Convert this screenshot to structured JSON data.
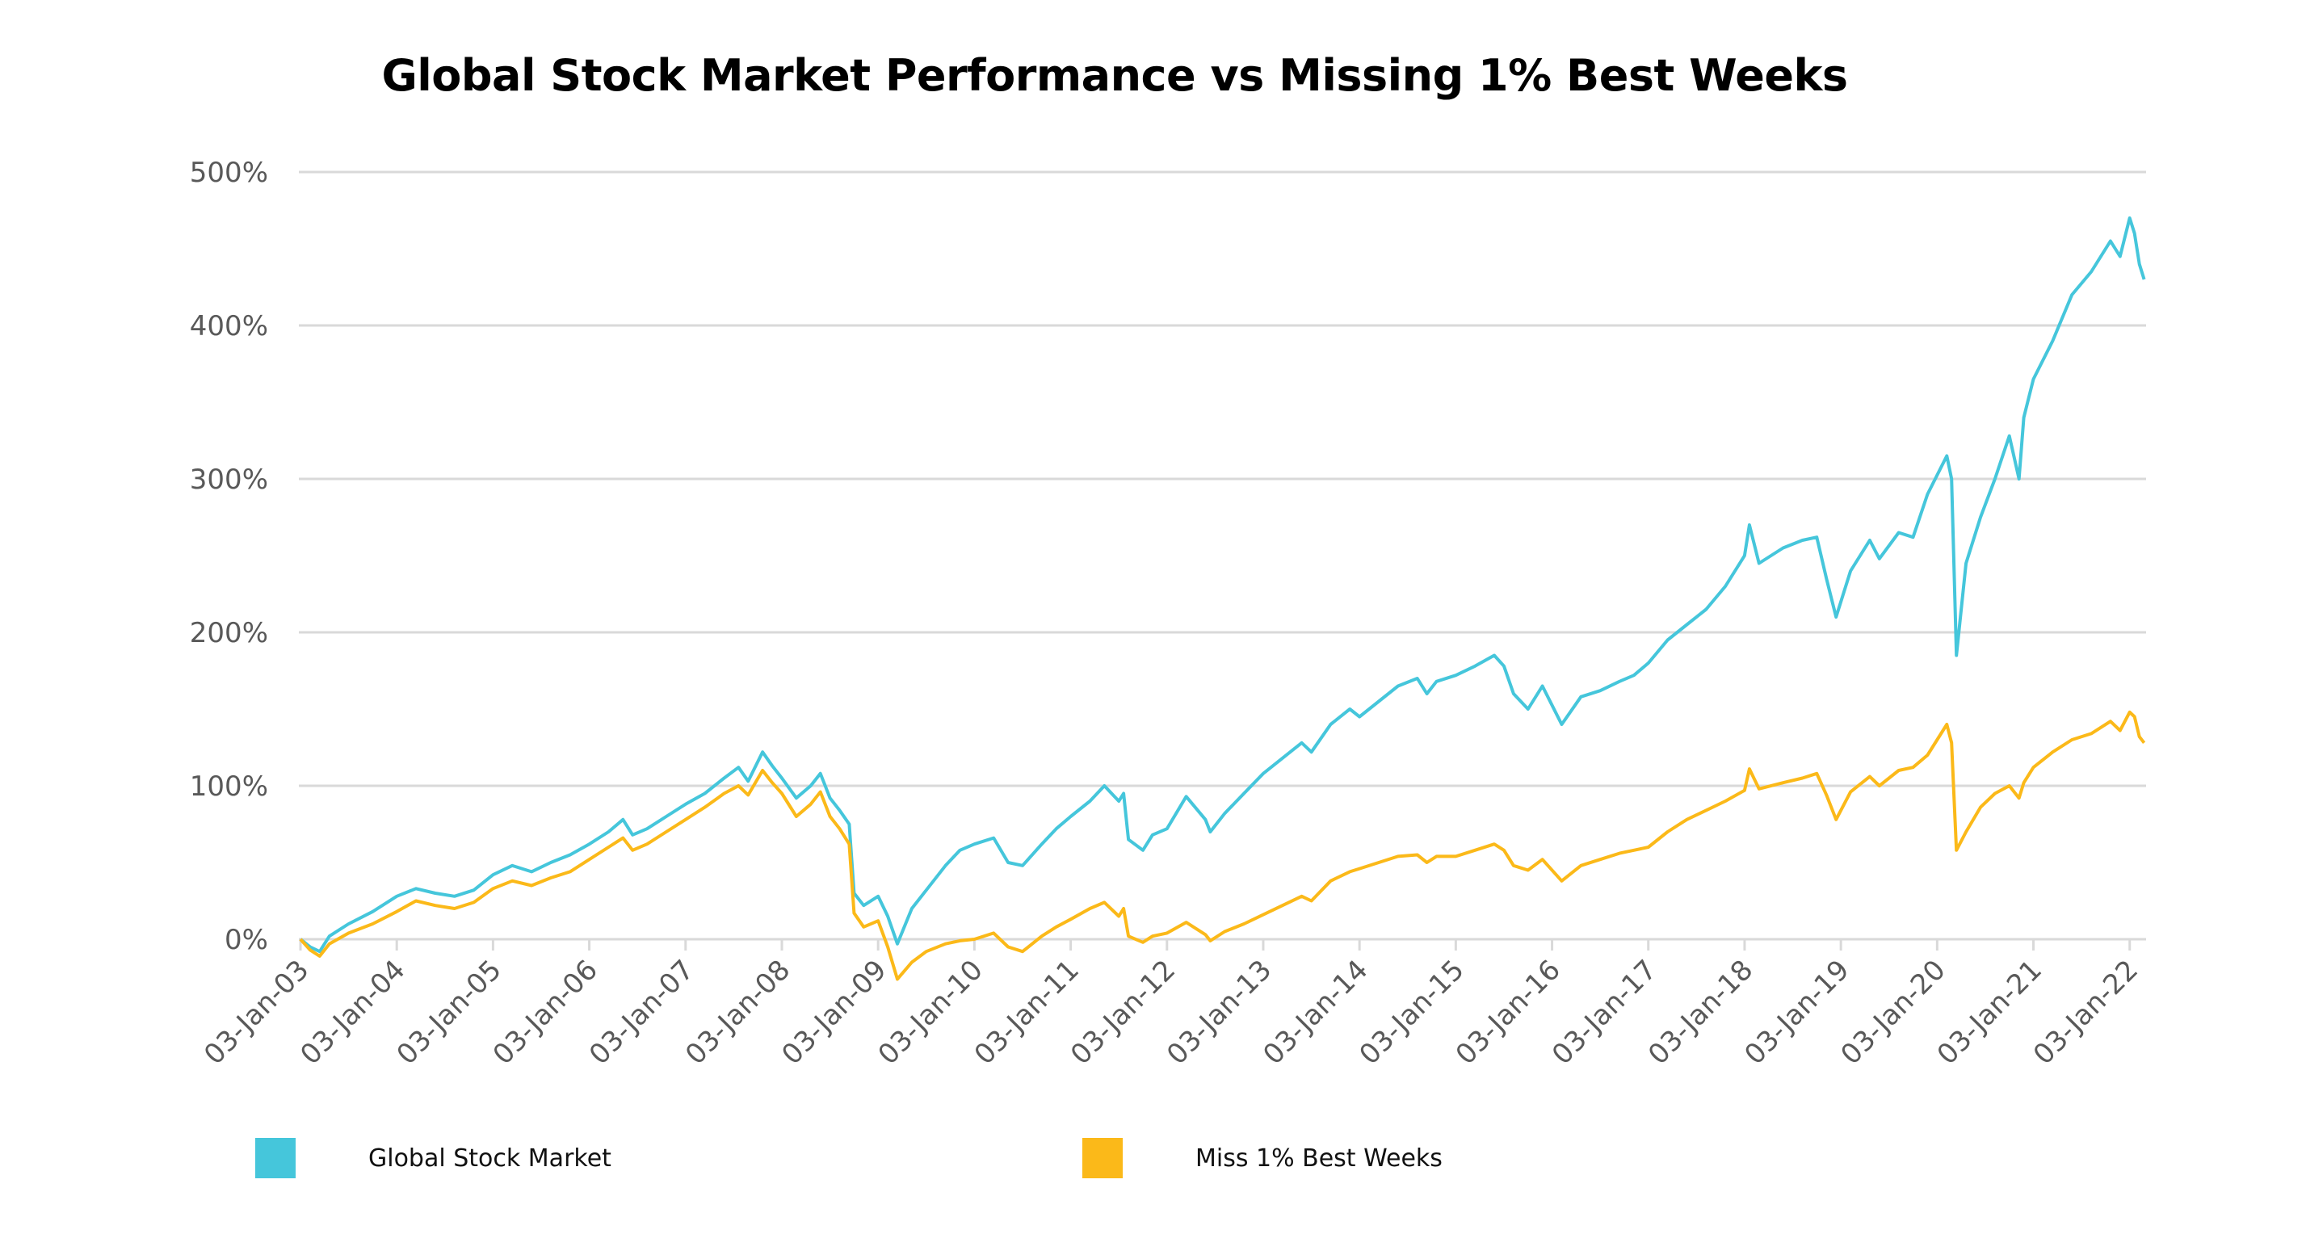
{
  "chart_data": {
    "type": "line",
    "title": "Global Stock Market Performance vs Missing 1% Best Weeks",
    "xlabel": "",
    "ylabel": "",
    "ylim": [
      0,
      500
    ],
    "yticks": [
      "0%",
      "100%",
      "200%",
      "300%",
      "400%",
      "500%"
    ],
    "ytick_values": [
      0,
      100,
      200,
      300,
      400,
      500
    ],
    "xlim": [
      2003.0,
      2022.17
    ],
    "xticks": [
      "03-Jan-03",
      "03-Jan-04",
      "03-Jan-05",
      "03-Jan-06",
      "03-Jan-07",
      "03-Jan-08",
      "03-Jan-09",
      "03-Jan-10",
      "03-Jan-11",
      "03-Jan-12",
      "03-Jan-13",
      "03-Jan-14",
      "03-Jan-15",
      "03-Jan-16",
      "03-Jan-17",
      "03-Jan-18",
      "03-Jan-19",
      "03-Jan-20",
      "03-Jan-21",
      "03-Jan-22"
    ],
    "xtick_values": [
      2003,
      2004,
      2005,
      2006,
      2007,
      2008,
      2009,
      2010,
      2011,
      2012,
      2013,
      2014,
      2015,
      2016,
      2017,
      2018,
      2019,
      2020,
      2021,
      2022
    ],
    "grid": true,
    "legend_position": "bottom",
    "series": [
      {
        "name": "Global Stock Market",
        "color": "#45C6DB",
        "x": [
          2003.0,
          2003.1,
          2003.2,
          2003.3,
          2003.5,
          2003.75,
          2004.0,
          2004.2,
          2004.4,
          2004.6,
          2004.8,
          2005.0,
          2005.2,
          2005.4,
          2005.6,
          2005.8,
          2006.0,
          2006.2,
          2006.35,
          2006.45,
          2006.6,
          2006.8,
          2007.0,
          2007.2,
          2007.4,
          2007.55,
          2007.65,
          2007.8,
          2007.9,
          2008.0,
          2008.15,
          2008.3,
          2008.4,
          2008.5,
          2008.6,
          2008.7,
          2008.75,
          2008.85,
          2009.0,
          2009.1,
          2009.2,
          2009.35,
          2009.5,
          2009.7,
          2009.85,
          2010.0,
          2010.2,
          2010.35,
          2010.5,
          2010.7,
          2010.85,
          2011.0,
          2011.2,
          2011.35,
          2011.5,
          2011.55,
          2011.6,
          2011.75,
          2011.85,
          2012.0,
          2012.2,
          2012.4,
          2012.45,
          2012.6,
          2012.8,
          2013.0,
          2013.2,
          2013.4,
          2013.5,
          2013.7,
          2013.9,
          2014.0,
          2014.2,
          2014.4,
          2014.6,
          2014.7,
          2014.8,
          2015.0,
          2015.2,
          2015.4,
          2015.5,
          2015.6,
          2015.75,
          2015.9,
          2016.1,
          2016.3,
          2016.5,
          2016.7,
          2016.85,
          2017.0,
          2017.2,
          2017.4,
          2017.6,
          2017.8,
          2018.0,
          2018.05,
          2018.15,
          2018.4,
          2018.6,
          2018.75,
          2018.85,
          2018.95,
          2019.1,
          2019.3,
          2019.4,
          2019.6,
          2019.75,
          2019.9,
          2020.1,
          2020.15,
          2020.2,
          2020.3,
          2020.45,
          2020.6,
          2020.75,
          2020.85,
          2020.9,
          2021.0,
          2021.2,
          2021.4,
          2021.6,
          2021.8,
          2021.9,
          2022.0,
          2022.05,
          2022.1,
          2022.15
        ],
        "values": [
          0,
          -5,
          -8,
          2,
          10,
          18,
          28,
          33,
          30,
          28,
          32,
          42,
          48,
          44,
          50,
          55,
          62,
          70,
          78,
          68,
          72,
          80,
          88,
          95,
          105,
          112,
          103,
          122,
          113,
          105,
          92,
          100,
          108,
          92,
          84,
          75,
          30,
          22,
          28,
          15,
          -3,
          20,
          32,
          48,
          58,
          62,
          66,
          50,
          48,
          62,
          72,
          80,
          90,
          100,
          90,
          95,
          65,
          58,
          68,
          72,
          93,
          78,
          70,
          82,
          95,
          108,
          118,
          128,
          122,
          140,
          150,
          145,
          155,
          165,
          170,
          160,
          168,
          172,
          178,
          185,
          178,
          160,
          150,
          165,
          140,
          158,
          162,
          168,
          172,
          180,
          195,
          205,
          215,
          230,
          250,
          270,
          245,
          255,
          260,
          262,
          235,
          210,
          240,
          260,
          248,
          265,
          262,
          290,
          315,
          300,
          185,
          245,
          275,
          300,
          328,
          300,
          340,
          365,
          390,
          420,
          435,
          455,
          445,
          470,
          460,
          440,
          430
        ]
      },
      {
        "name": "Miss 1% Best Weeks",
        "color": "#FBB919",
        "x": [
          2003.0,
          2003.1,
          2003.2,
          2003.3,
          2003.5,
          2003.75,
          2004.0,
          2004.2,
          2004.4,
          2004.6,
          2004.8,
          2005.0,
          2005.2,
          2005.4,
          2005.6,
          2005.8,
          2006.0,
          2006.2,
          2006.35,
          2006.45,
          2006.6,
          2006.8,
          2007.0,
          2007.2,
          2007.4,
          2007.55,
          2007.65,
          2007.8,
          2007.9,
          2008.0,
          2008.15,
          2008.3,
          2008.4,
          2008.5,
          2008.6,
          2008.7,
          2008.75,
          2008.85,
          2009.0,
          2009.1,
          2009.2,
          2009.35,
          2009.5,
          2009.7,
          2009.85,
          2010.0,
          2010.2,
          2010.35,
          2010.5,
          2010.7,
          2010.85,
          2011.0,
          2011.2,
          2011.35,
          2011.5,
          2011.55,
          2011.6,
          2011.75,
          2011.85,
          2012.0,
          2012.2,
          2012.4,
          2012.45,
          2012.6,
          2012.8,
          2013.0,
          2013.2,
          2013.4,
          2013.5,
          2013.7,
          2013.9,
          2014.0,
          2014.2,
          2014.4,
          2014.6,
          2014.7,
          2014.8,
          2015.0,
          2015.2,
          2015.4,
          2015.5,
          2015.6,
          2015.75,
          2015.9,
          2016.1,
          2016.3,
          2016.5,
          2016.7,
          2016.85,
          2017.0,
          2017.2,
          2017.4,
          2017.6,
          2017.8,
          2018.0,
          2018.05,
          2018.15,
          2018.4,
          2018.6,
          2018.75,
          2018.85,
          2018.95,
          2019.1,
          2019.3,
          2019.4,
          2019.6,
          2019.75,
          2019.9,
          2020.1,
          2020.15,
          2020.2,
          2020.3,
          2020.45,
          2020.6,
          2020.75,
          2020.85,
          2020.9,
          2021.0,
          2021.2,
          2021.4,
          2021.6,
          2021.8,
          2021.9,
          2022.0,
          2022.05,
          2022.1,
          2022.15
        ],
        "values": [
          0,
          -7,
          -11,
          -3,
          4,
          10,
          18,
          25,
          22,
          20,
          24,
          33,
          38,
          35,
          40,
          44,
          52,
          60,
          66,
          58,
          62,
          70,
          78,
          86,
          95,
          100,
          94,
          110,
          102,
          95,
          80,
          88,
          96,
          80,
          72,
          62,
          17,
          8,
          12,
          -5,
          -26,
          -15,
          -8,
          -3,
          -1,
          0,
          4,
          -5,
          -8,
          2,
          8,
          13,
          20,
          24,
          15,
          20,
          2,
          -2,
          2,
          4,
          11,
          3,
          -1,
          5,
          10,
          16,
          22,
          28,
          25,
          38,
          44,
          46,
          50,
          54,
          55,
          50,
          54,
          54,
          58,
          62,
          58,
          48,
          45,
          52,
          38,
          48,
          52,
          56,
          58,
          60,
          70,
          78,
          84,
          90,
          97,
          111,
          98,
          102,
          105,
          108,
          94,
          78,
          96,
          106,
          100,
          110,
          112,
          120,
          140,
          128,
          58,
          70,
          86,
          95,
          100,
          92,
          102,
          112,
          122,
          130,
          134,
          142,
          136,
          148,
          145,
          132,
          128
        ]
      }
    ]
  },
  "legend": {
    "items": [
      {
        "label": "Global Stock Market",
        "color": "#45C6DB"
      },
      {
        "label": "Miss 1% Best Weeks",
        "color": "#FBB919"
      }
    ]
  }
}
